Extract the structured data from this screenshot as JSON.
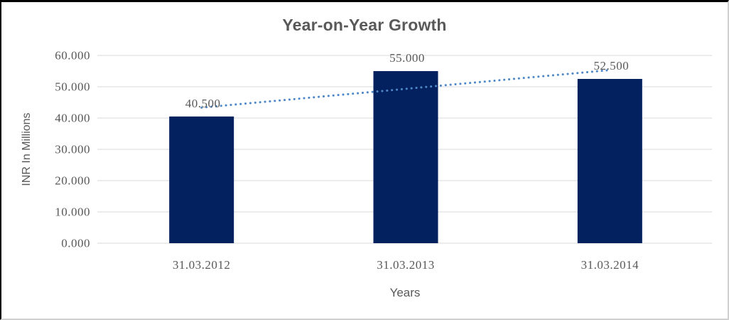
{
  "chart_data": {
    "type": "bar",
    "title": "Year-on-Year Growth",
    "xlabel": "Years",
    "ylabel": "INR In Millions",
    "categories": [
      "31.03.2012",
      "31.03.2013",
      "31.03.2014"
    ],
    "values": [
      40.5,
      55.0,
      52.5
    ],
    "value_labels": [
      "40.500",
      "55.000",
      "52.500"
    ],
    "y_ticks": [
      {
        "value": 0,
        "label": "0.000"
      },
      {
        "value": 10,
        "label": "10.000"
      },
      {
        "value": 20,
        "label": "20.000"
      },
      {
        "value": 30,
        "label": "30.000"
      },
      {
        "value": 40,
        "label": "40.000"
      },
      {
        "value": 50,
        "label": "50.000"
      },
      {
        "value": 60,
        "label": "60.000"
      }
    ],
    "ylim": [
      0,
      60
    ],
    "grid": "horizontal",
    "legend": "none",
    "trendline": {
      "type": "linear",
      "style": "dotted"
    },
    "colors": {
      "bar": "#03215f",
      "trendline": "#4e87c7",
      "gridline": "#d9d9d9",
      "text": "#595959"
    }
  }
}
